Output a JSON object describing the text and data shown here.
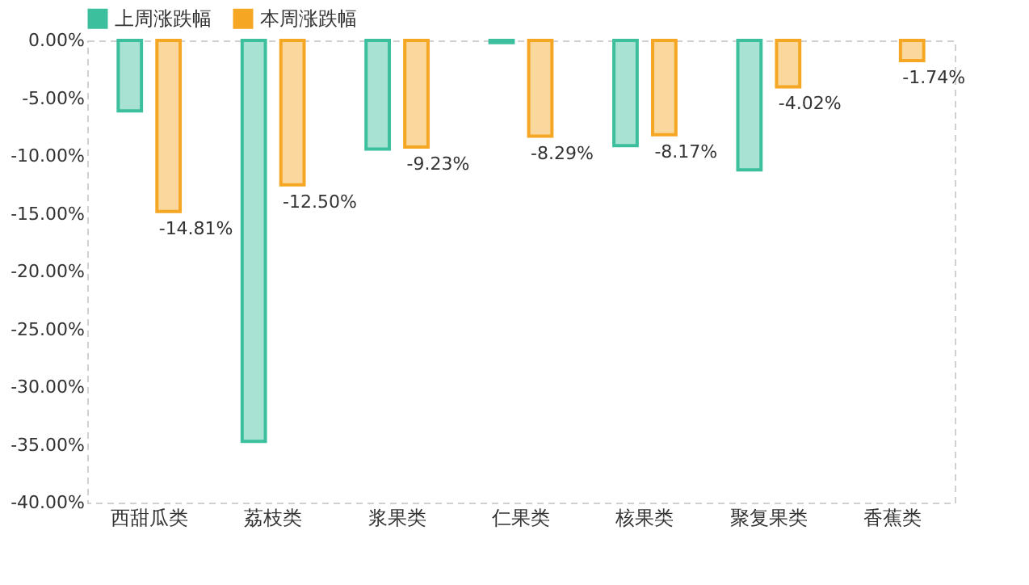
{
  "chart_data": {
    "type": "bar",
    "categories": [
      "西甜瓜类",
      "荔枝类",
      "浆果类",
      "仁果类",
      "核果类",
      "聚复果类",
      "香蕉类"
    ],
    "series": [
      {
        "name": "上周涨跌幅",
        "color": "#3cbf9c",
        "values": [
          -6.1,
          -34.7,
          -9.4,
          -0.2,
          -9.1,
          -11.2,
          null
        ]
      },
      {
        "name": "本周涨跌幅",
        "color": "#f5a623",
        "values": [
          -14.81,
          -12.5,
          -9.23,
          -8.29,
          -8.17,
          -4.02,
          -1.74
        ],
        "value_labels": [
          "-14.81%",
          "-12.50%",
          "-9.23%",
          "-8.29%",
          "-8.17%",
          "-4.02%",
          "-1.74%"
        ]
      }
    ],
    "ylim": [
      -40,
      0
    ],
    "yticks": [
      {
        "value": 0,
        "label": "0.00%"
      },
      {
        "value": -5,
        "label": "-5.00%"
      },
      {
        "value": -10,
        "label": "-10.00%"
      },
      {
        "value": -15,
        "label": "-15.00%"
      },
      {
        "value": -20,
        "label": "-20.00%"
      },
      {
        "value": -25,
        "label": "-25.00%"
      },
      {
        "value": -30,
        "label": "-30.00%"
      },
      {
        "value": -35,
        "label": "-35.00%"
      },
      {
        "value": -40,
        "label": "-40.00%"
      }
    ],
    "grid": false,
    "legend": "top"
  }
}
